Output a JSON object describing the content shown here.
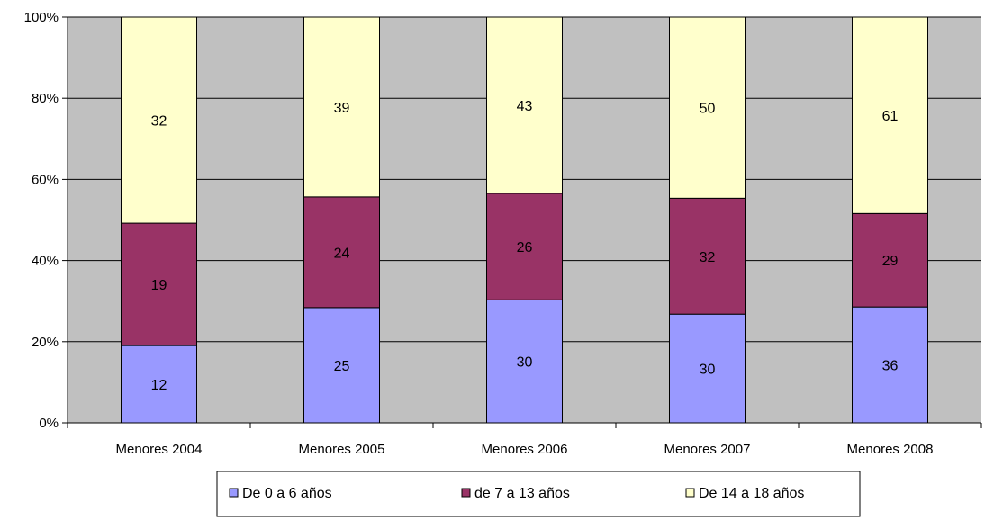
{
  "chart_data": {
    "type": "bar",
    "stacked": "percent",
    "categories": [
      "Menores 2004",
      "Menores 2005",
      "Menores 2006",
      "Menores 2007",
      "Menores 2008"
    ],
    "series": [
      {
        "name": "De 0 a 6 años",
        "values": [
          12,
          25,
          30,
          30,
          36
        ],
        "color": "#9999ff"
      },
      {
        "name": "de 7 a 13 años",
        "values": [
          19,
          24,
          26,
          32,
          29
        ],
        "color": "#993366"
      },
      {
        "name": "De 14 a 18 años",
        "values": [
          32,
          39,
          43,
          50,
          61
        ],
        "color": "#ffffcc"
      }
    ],
    "y_ticks": [
      "0%",
      "20%",
      "40%",
      "60%",
      "80%",
      "100%"
    ],
    "ylim": [
      0,
      100
    ],
    "grid": true,
    "plot_background": "#c0c0c0",
    "legend_position": "bottom"
  }
}
